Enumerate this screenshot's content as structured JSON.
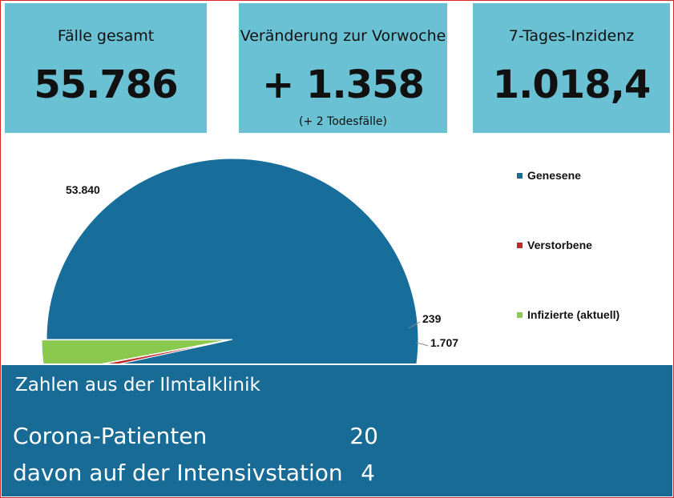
{
  "cards": [
    {
      "label": "Fälle gesamt",
      "value": "55.786",
      "sub": ""
    },
    {
      "label": "Veränderung zur Vorwoche",
      "value": "+ 1.358",
      "sub": "(+ 2 Todesfälle)"
    },
    {
      "label": "7-Tages-Inzidenz",
      "value": "1.018,4",
      "sub": ""
    }
  ],
  "colors": {
    "card_bg": "#6ac1d4",
    "panel_bg": "#176b95",
    "frame": "#d8262d"
  },
  "chart_data": {
    "type": "pie",
    "title": "",
    "categories": [
      "Genesene",
      "Verstorbene",
      "Infizierte (aktuell)"
    ],
    "values": [
      53840,
      239,
      1707
    ],
    "data_labels": [
      "53.840",
      "239",
      "1.707"
    ],
    "colors": [
      "#176e9b",
      "#c0272d",
      "#8ac94d"
    ],
    "legend_position": "right",
    "start_angle_deg": 180,
    "direction": "clockwise",
    "visible_fraction": "half"
  },
  "clinic": {
    "title": "Zahlen aus der Ilmtalklinik",
    "rows": [
      {
        "label": "Corona-Patienten",
        "value": "20"
      },
      {
        "label": "davon auf der Intensivstation",
        "value": "4"
      }
    ]
  }
}
